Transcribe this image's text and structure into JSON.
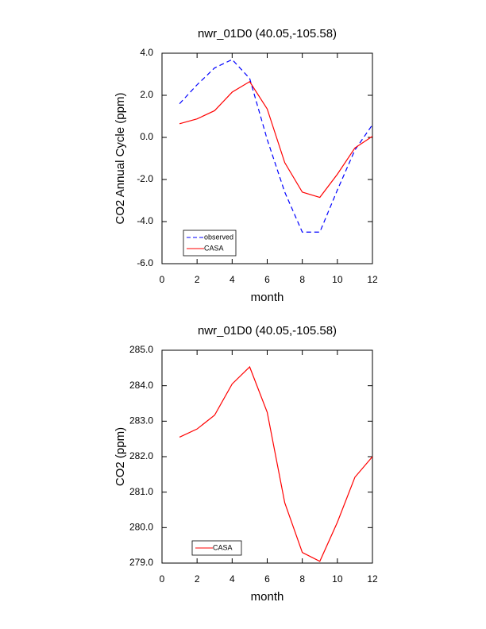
{
  "chart_data": [
    {
      "type": "line",
      "title": "nwr_01D0 (40.05,-105.58)",
      "xlabel": "month",
      "ylabel": "CO2 Annual Cycle (ppm)",
      "x": [
        1,
        2,
        3,
        4,
        5,
        6,
        7,
        8,
        9,
        10,
        11,
        12
      ],
      "series": [
        {
          "name": "observed",
          "color": "#0000ff",
          "linestyle": "dashed",
          "values": [
            1.6,
            2.5,
            3.3,
            3.7,
            2.8,
            -0.1,
            -2.6,
            -4.5,
            -4.5,
            -2.5,
            -0.6,
            0.6
          ]
        },
        {
          "name": "CASA",
          "color": "#ff0000",
          "linestyle": "solid",
          "values": [
            0.65,
            0.88,
            1.27,
            2.15,
            2.65,
            1.35,
            -1.2,
            -2.6,
            -2.85,
            -1.75,
            -0.5,
            0.05
          ]
        }
      ],
      "xlim": [
        0,
        12
      ],
      "xticks": [
        0,
        2,
        4,
        6,
        8,
        10,
        12
      ],
      "ylim": [
        -6,
        4
      ],
      "yticks": [
        {
          "value": -6,
          "label": "-6.0"
        },
        {
          "value": -4,
          "label": "-4.0"
        },
        {
          "value": -2,
          "label": "-2.0"
        },
        {
          "value": 0,
          "label": "0.0"
        },
        {
          "value": 2,
          "label": "2.0"
        },
        {
          "value": 4,
          "label": "4.0"
        }
      ],
      "legend": "lower left"
    },
    {
      "type": "line",
      "title": "nwr_01D0 (40.05,-105.58)",
      "xlabel": "month",
      "ylabel": "CO2 (ppm)",
      "x": [
        1,
        2,
        3,
        4,
        5,
        6,
        7,
        8,
        9,
        10,
        11,
        12
      ],
      "series": [
        {
          "name": "CASA",
          "color": "#ff0000",
          "linestyle": "solid",
          "values": [
            282.55,
            282.78,
            283.17,
            284.05,
            284.53,
            283.25,
            280.7,
            279.3,
            279.05,
            280.15,
            281.42,
            282.0
          ]
        }
      ],
      "xlim": [
        0,
        12
      ],
      "xticks": [
        0,
        2,
        4,
        6,
        8,
        10,
        12
      ],
      "ylim": [
        279,
        285
      ],
      "yticks": [
        {
          "value": 279,
          "label": "279.0"
        },
        {
          "value": 280,
          "label": "280.0"
        },
        {
          "value": 281,
          "label": "281.0"
        },
        {
          "value": 282,
          "label": "282.0"
        },
        {
          "value": 283,
          "label": "283.0"
        },
        {
          "value": 284,
          "label": "284.0"
        },
        {
          "value": 285,
          "label": "285.0"
        }
      ],
      "legend": "lower left"
    }
  ]
}
